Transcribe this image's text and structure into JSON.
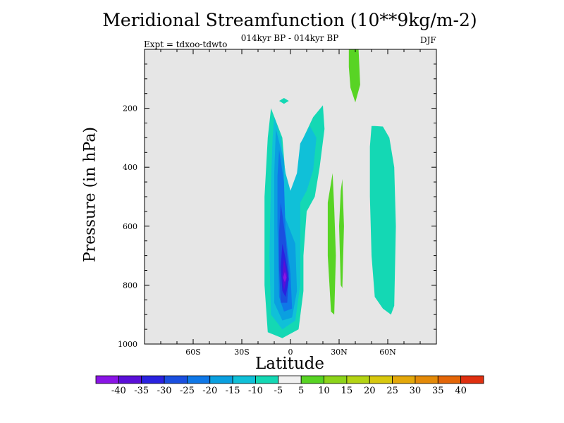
{
  "chart_data": {
    "type": "heatmap",
    "title": "Meridional Streamfunction (10**9kg/m-2)",
    "subtitle": "014kyr BP - 014kyr BP",
    "left_label": "Expt = tdxoo-tdwto",
    "right_label": "DJF",
    "xlabel": "Latitude",
    "ylabel": "Pressure (in hPa)",
    "x_range": [
      -90,
      90
    ],
    "y_range": [
      1000,
      0
    ],
    "x_ticks": [
      {
        "value": -60,
        "label": "60S"
      },
      {
        "value": -30,
        "label": "30S"
      },
      {
        "value": 0,
        "label": "0"
      },
      {
        "value": 30,
        "label": "30N"
      },
      {
        "value": 60,
        "label": "60N"
      }
    ],
    "y_ticks": [
      {
        "value": 200,
        "label": "200"
      },
      {
        "value": 400,
        "label": "400"
      },
      {
        "value": 600,
        "label": "600"
      },
      {
        "value": 800,
        "label": "800"
      },
      {
        "value": 1000,
        "label": "1000"
      }
    ],
    "colorbar": {
      "levels": [
        "-40",
        "-35",
        "-30",
        "-25",
        "-20",
        "-15",
        "-10",
        "-5",
        "5",
        "10",
        "15",
        "20",
        "25",
        "30",
        "35",
        "40"
      ],
      "colors": [
        "#8a14e6",
        "#5a0fd8",
        "#2a22e0",
        "#1a4fe0",
        "#0f78e8",
        "#0aa0e0",
        "#10c0d8",
        "#14d8b4",
        "#f0f0f0",
        "#58d424",
        "#8cd41a",
        "#b4d414",
        "#d8c80e",
        "#e4a80a",
        "#e48a08",
        "#e46608",
        "#e03010"
      ]
    },
    "regions": [
      {
        "name": "tropical-negative-cell-outer",
        "level": "-5",
        "color": "#14d8b4",
        "points": [
          [
            -12,
            200
          ],
          [
            -5,
            300
          ],
          [
            -2,
            500
          ],
          [
            0,
            540
          ],
          [
            5,
            460
          ],
          [
            8,
            380
          ],
          [
            8,
            300
          ],
          [
            14,
            230
          ],
          [
            20,
            190
          ],
          [
            21,
            270
          ],
          [
            18,
            400
          ],
          [
            15,
            500
          ],
          [
            10,
            550
          ],
          [
            8,
            700
          ],
          [
            8,
            820
          ],
          [
            5,
            950
          ],
          [
            -5,
            980
          ],
          [
            -14,
            960
          ],
          [
            -16,
            800
          ],
          [
            -16,
            500
          ],
          [
            -14,
            300
          ]
        ]
      },
      {
        "name": "tropical-negative-cell-10",
        "level": "-10",
        "color": "#10c0d8",
        "points": [
          [
            -10,
            230
          ],
          [
            -6,
            300
          ],
          [
            -3,
            420
          ],
          [
            0,
            480
          ],
          [
            4,
            420
          ],
          [
            6,
            320
          ],
          [
            12,
            260
          ],
          [
            16,
            300
          ],
          [
            14,
            410
          ],
          [
            10,
            480
          ],
          [
            6,
            520
          ],
          [
            6,
            640
          ],
          [
            6,
            800
          ],
          [
            3,
            920
          ],
          [
            -5,
            950
          ],
          [
            -12,
            900
          ],
          [
            -13,
            700
          ],
          [
            -12,
            450
          ],
          [
            -11,
            300
          ]
        ]
      },
      {
        "name": "tropical-negative-cell-15",
        "level": "-15",
        "color": "#0aa0e0",
        "points": [
          [
            -9,
            270
          ],
          [
            -4,
            380
          ],
          [
            -4,
            560
          ],
          [
            3,
            660
          ],
          [
            4,
            820
          ],
          [
            1,
            910
          ],
          [
            -5,
            920
          ],
          [
            -10,
            860
          ],
          [
            -10,
            600
          ],
          [
            -10,
            420
          ]
        ]
      },
      {
        "name": "tropical-negative-cell-20",
        "level": "-20",
        "color": "#0f78e8",
        "points": [
          [
            -7,
            340
          ],
          [
            -4,
            450
          ],
          [
            -3,
            620
          ],
          [
            0,
            760
          ],
          [
            1,
            880
          ],
          [
            -4,
            890
          ],
          [
            -7,
            840
          ],
          [
            -8,
            600
          ],
          [
            -8,
            430
          ]
        ]
      },
      {
        "name": "tropical-negative-cell-25",
        "level": "-25",
        "color": "#1a4fe0",
        "points": [
          [
            -6,
            520
          ],
          [
            -3,
            640
          ],
          [
            -1,
            760
          ],
          [
            -2,
            860
          ],
          [
            -6,
            860
          ],
          [
            -7,
            740
          ],
          [
            -7,
            620
          ]
        ]
      },
      {
        "name": "tropical-negative-cell-30",
        "level": "-30",
        "color": "#2a22e0",
        "points": [
          [
            -5,
            660
          ],
          [
            -3,
            710
          ],
          [
            -1,
            780
          ],
          [
            -3,
            840
          ],
          [
            -5,
            820
          ],
          [
            -6,
            740
          ]
        ]
      },
      {
        "name": "tropical-negative-cell-35",
        "level": "-35",
        "color": "#5a0fd8",
        "points": [
          [
            -4,
            710
          ],
          [
            -2,
            770
          ],
          [
            -4,
            820
          ],
          [
            -5,
            770
          ]
        ]
      },
      {
        "name": "tropical-negative-cell-core",
        "level": "-40",
        "color": "#8a14e6",
        "points": [
          [
            -3.5,
            755
          ],
          [
            -2.5,
            775
          ],
          [
            -3.5,
            790
          ],
          [
            -4.5,
            775
          ]
        ]
      },
      {
        "name": "upper-negative-blob",
        "level": "-5",
        "color": "#14d8b4",
        "points": [
          [
            -4,
            165
          ],
          [
            -1,
            175
          ],
          [
            -4,
            185
          ],
          [
            -7,
            175
          ]
        ]
      },
      {
        "name": "subtropical-positive-cell-a",
        "level": "5",
        "color": "#58d424",
        "points": [
          [
            26,
            420
          ],
          [
            27,
            540
          ],
          [
            28,
            700
          ],
          [
            27,
            900
          ],
          [
            25,
            890
          ],
          [
            23,
            700
          ],
          [
            23,
            520
          ]
        ]
      },
      {
        "name": "subtropical-positive-cell-b",
        "level": "5",
        "color": "#58d424",
        "points": [
          [
            32,
            440
          ],
          [
            33,
            600
          ],
          [
            32,
            810
          ],
          [
            31,
            800
          ],
          [
            30,
            600
          ],
          [
            31,
            480
          ]
        ]
      },
      {
        "name": "polar-positive-cell",
        "level": "5",
        "color": "#58d424",
        "points": [
          [
            36,
            0
          ],
          [
            42,
            0
          ],
          [
            43,
            120
          ],
          [
            40,
            180
          ],
          [
            37,
            130
          ],
          [
            36,
            60
          ]
        ]
      },
      {
        "name": "midlatitude-negative-cell",
        "level": "-5",
        "color": "#14d8b4",
        "points": [
          [
            50,
            260
          ],
          [
            52,
            260
          ],
          [
            57,
            262
          ],
          [
            61,
            300
          ],
          [
            64,
            400
          ],
          [
            65,
            600
          ],
          [
            64,
            870
          ],
          [
            62,
            900
          ],
          [
            57,
            880
          ],
          [
            52,
            840
          ],
          [
            50,
            700
          ],
          [
            49,
            500
          ],
          [
            49,
            330
          ]
        ]
      }
    ]
  }
}
